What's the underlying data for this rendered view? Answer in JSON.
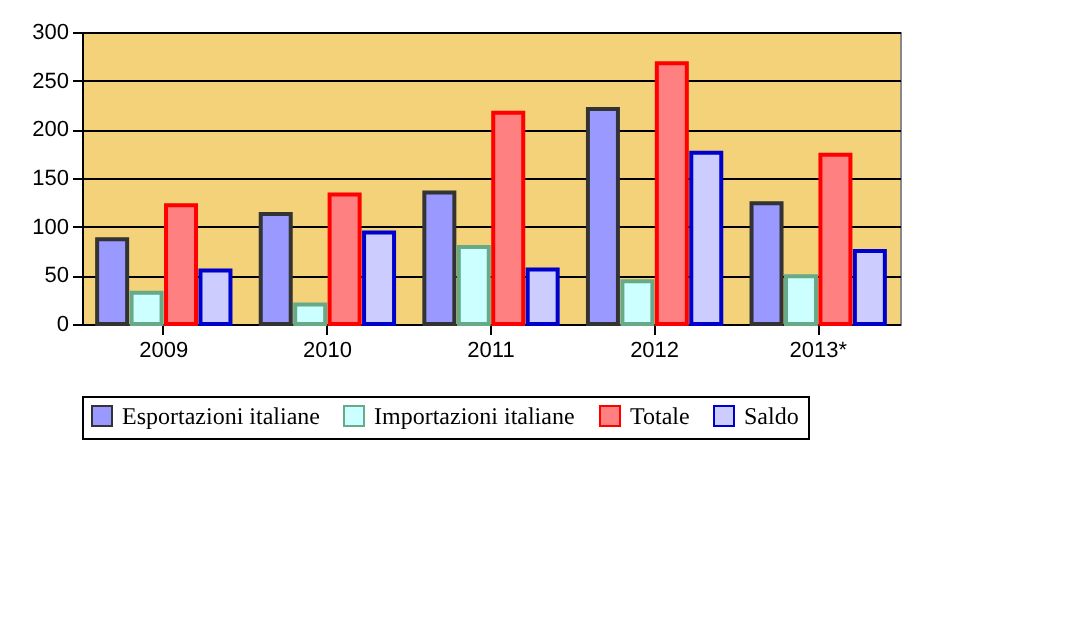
{
  "chart_data": {
    "type": "bar",
    "categories": [
      "2009",
      "2010",
      "2011",
      "2012",
      "2013*"
    ],
    "series": [
      {
        "name": "Esportazioni italiane",
        "color": "#9999ff",
        "values": [
          87,
          113,
          135,
          221,
          124
        ]
      },
      {
        "name": "Importazioni italiane",
        "color": "#ccffff",
        "values": [
          32,
          20,
          79,
          44,
          49
        ]
      },
      {
        "name": "Totale",
        "color": "#ff8080",
        "values": [
          122,
          133,
          217,
          268,
          174
        ]
      },
      {
        "name": "Saldo",
        "color": "#ccccff",
        "values": [
          55,
          94,
          56,
          176,
          75
        ]
      }
    ],
    "ylim": [
      0,
      300
    ],
    "yticks": [
      0,
      50,
      100,
      150,
      200,
      250,
      300
    ],
    "grid": "y",
    "legend": "bottom"
  }
}
